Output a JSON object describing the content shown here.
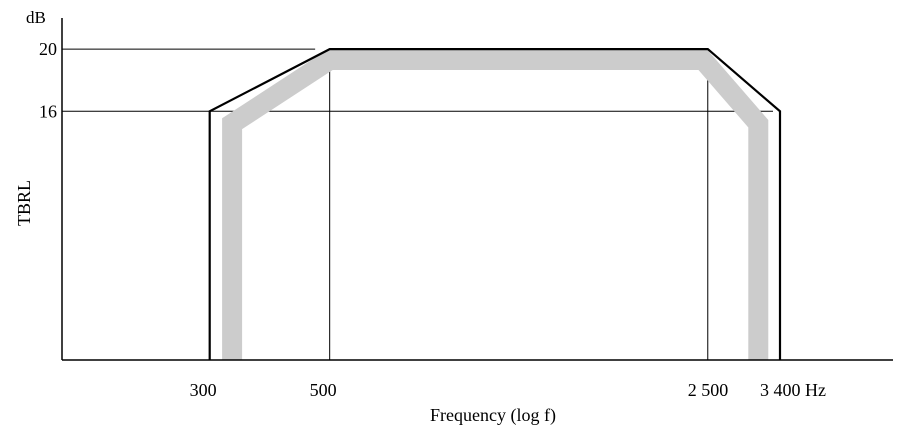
{
  "chart_data": {
    "type": "line",
    "title": "",
    "xlabel": "Frequency (log f)",
    "ylabel": "TBRL",
    "y_unit": "dB",
    "x_scale": "log",
    "x_ticks": [
      {
        "value": 300,
        "label": "300"
      },
      {
        "value": 500,
        "label": "500"
      },
      {
        "value": 2500,
        "label": "2 500"
      },
      {
        "value": 3400,
        "label": "3 400 Hz"
      }
    ],
    "y_ticks": [
      {
        "value": 16,
        "label": "16"
      },
      {
        "value": 20,
        "label": "20"
      }
    ],
    "xlim": [
      160,
      5500
    ],
    "ylim": [
      0,
      22
    ],
    "grid": false,
    "series": [
      {
        "role": "mask-outline",
        "color": "#000000",
        "x": [
          300,
          300,
          500,
          2500,
          3400,
          3400
        ],
        "y": [
          0,
          16,
          20,
          20,
          16,
          0
        ]
      },
      {
        "role": "mask-shading",
        "color": "#cccccc",
        "x": [
          330,
          330,
          500,
          2450,
          3100,
          3100
        ],
        "y": [
          0,
          15.2,
          19.3,
          19.3,
          15.2,
          0
        ]
      }
    ],
    "reference_lines": [
      {
        "axis": "y",
        "value": 20,
        "x_from": 160,
        "x_to": 470
      },
      {
        "axis": "y",
        "value": 16,
        "x_from": 160,
        "x_to": 3300
      },
      {
        "axis": "x",
        "value": 500,
        "y_from": 0,
        "y_to": 20
      },
      {
        "axis": "x",
        "value": 2500,
        "y_from": 0,
        "y_to": 20
      }
    ]
  }
}
